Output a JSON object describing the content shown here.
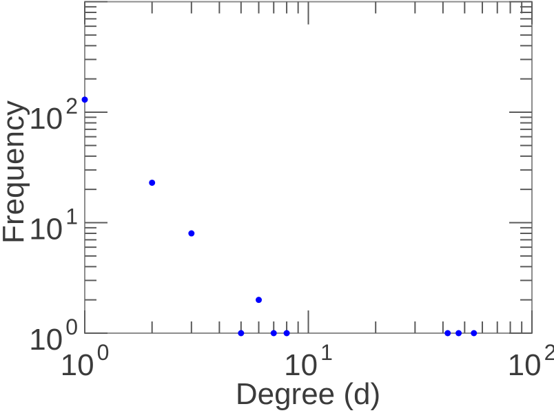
{
  "chart_data": {
    "type": "scatter",
    "xlabel": "Degree (d)",
    "ylabel": "Frequency",
    "x_scale": "log",
    "y_scale": "log",
    "xlim": [
      1,
      100
    ],
    "ylim": [
      1,
      1000
    ],
    "x_labeled_exponents": [
      0,
      1,
      2
    ],
    "y_labeled_exponents": [
      0,
      1,
      2
    ],
    "tick_label_base": "10",
    "grid": false,
    "legend": "none",
    "box": true,
    "tick_direction": "in",
    "marker": {
      "shape": "circle",
      "color": "#0000ff",
      "radius": 4.5
    },
    "colors": {
      "frame": "#8c8c8c",
      "tick": "#5a5a5a",
      "text": "#3b3b3b",
      "background": "#ffffff"
    },
    "points": [
      {
        "x": 1,
        "y": 130
      },
      {
        "x": 2,
        "y": 23
      },
      {
        "x": 3,
        "y": 8
      },
      {
        "x": 5,
        "y": 1
      },
      {
        "x": 6,
        "y": 2
      },
      {
        "x": 7,
        "y": 1
      },
      {
        "x": 8,
        "y": 1
      },
      {
        "x": 42,
        "y": 1
      },
      {
        "x": 47,
        "y": 1
      },
      {
        "x": 55,
        "y": 1
      }
    ]
  }
}
